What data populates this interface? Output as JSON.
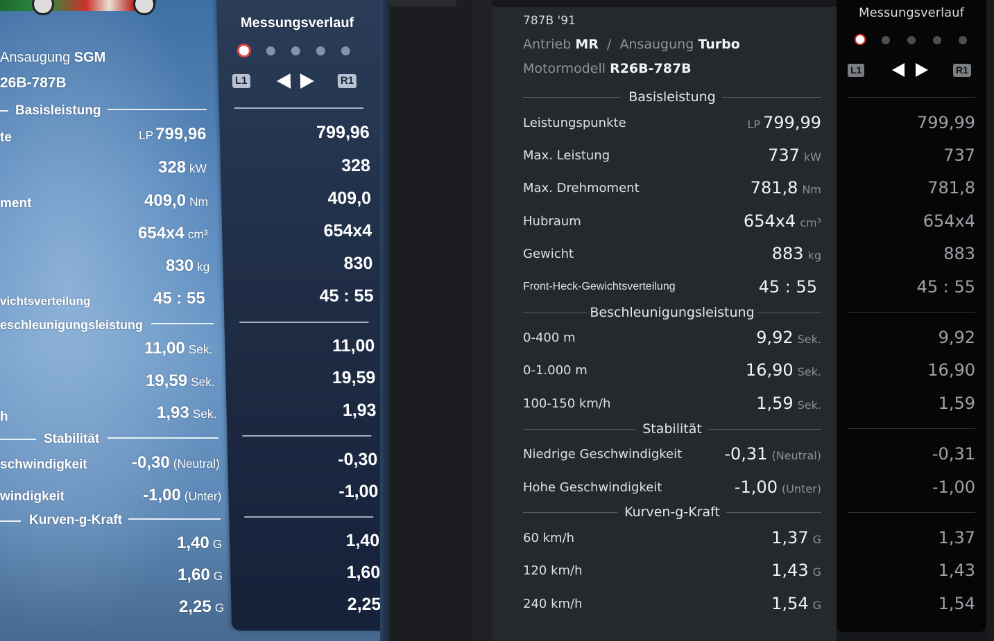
{
  "left_photo": {
    "header": {
      "intake_label": "Ansaugung",
      "intake_value": "SGM",
      "engine_value": "26B-787B"
    },
    "sections": {
      "basis": "Basisleistung",
      "accel": "eschleunigungsleistung",
      "stab": "Stabilität",
      "kurven": "Kurven-g-Kraft"
    },
    "row_labels": {
      "pp": "te",
      "torque": "ment",
      "weight_dist": "vichtsverteilung",
      "kmh": "h",
      "low_speed": "schwindigkeit",
      "high_speed": "windigkeit"
    },
    "values": {
      "pp_prefix": "LP",
      "pp": "799,96",
      "power": "328",
      "power_unit": "kW",
      "torque": "409,0",
      "torque_unit": "Nm",
      "displacement": "654x4",
      "displacement_unit": "cm³",
      "weight": "830",
      "weight_unit": "kg",
      "weight_dist": "45 : 55",
      "acc1": "11,00",
      "acc2": "19,59",
      "acc3": "1,93",
      "acc_unit": "Sek.",
      "stab_low": "-0,30",
      "stab_low_tag": "(Neutral)",
      "stab_high": "-1,00",
      "stab_high_tag": "(Unter)",
      "g1": "1,40",
      "g2": "1,60",
      "g3": "2,25",
      "g_unit": "G"
    },
    "panel": {
      "title": "Messungsverlauf",
      "l1": "L1",
      "r1": "R1",
      "values": [
        "799,96",
        "328",
        "409,0",
        "654x4",
        "830",
        "45 : 55",
        "11,00",
        "19,59",
        "1,93",
        "-0,30",
        "-1,00",
        "1,40",
        "1,60",
        "2,25"
      ]
    }
  },
  "main": {
    "car_name": "787B '91",
    "drive_label": "Antrieb",
    "drive_value": "MR",
    "separator": "/",
    "intake_label": "Ansaugung",
    "intake_value": "Turbo",
    "engine_label": "Motormodell",
    "engine_value": "R26B-787B",
    "sections": {
      "basis": "Basisleistung",
      "accel": "Beschleunigungsleistung",
      "stab": "Stabilität",
      "kurven": "Kurven-g-Kraft"
    },
    "rows": {
      "pp": {
        "label": "Leistungspunkte",
        "prefix": "LP",
        "value": "799,99"
      },
      "power": {
        "label": "Max. Leistung",
        "value": "737",
        "unit": "kW"
      },
      "torque": {
        "label": "Max. Drehmoment",
        "value": "781,8",
        "unit": "Nm"
      },
      "displacement": {
        "label": "Hubraum",
        "value": "654x4",
        "unit": "cm³"
      },
      "weight": {
        "label": "Gewicht",
        "value": "883",
        "unit": "kg"
      },
      "weight_dist": {
        "label": "Front-Heck-Gewichtsverteilung",
        "value": "45 : 55"
      },
      "acc400": {
        "label": "0-400 m",
        "value": "9,92",
        "unit": "Sek."
      },
      "acc1000": {
        "label": "0-1.000 m",
        "value": "16,90",
        "unit": "Sek."
      },
      "acc100150": {
        "label": "100-150 km/h",
        "value": "1,59",
        "unit": "Sek."
      },
      "stab_low": {
        "label": "Niedrige Geschwindigkeit",
        "value": "-0,31",
        "unit": "(Neutral)"
      },
      "stab_high": {
        "label": "Hohe Geschwindigkeit",
        "value": "-1,00",
        "unit": "(Unter)"
      },
      "g60": {
        "label": "60 km/h",
        "value": "1,37",
        "unit": "G"
      },
      "g120": {
        "label": "120 km/h",
        "value": "1,43",
        "unit": "G"
      },
      "g240": {
        "label": "240 km/h",
        "value": "1,54",
        "unit": "G"
      }
    }
  },
  "history_panel": {
    "title": "Messungsverlauf",
    "l1": "L1",
    "r1": "R1",
    "values": [
      "799,99",
      "737",
      "781,8",
      "654x4",
      "883",
      "45 : 55",
      "9,92",
      "16,90",
      "1,59",
      "-0,31",
      "-1,00",
      "1,37",
      "1,43",
      "1,54"
    ]
  },
  "colors": {
    "active_dot": "#e43b3b",
    "main_bg": "#25282c",
    "history_bg": "#060607"
  }
}
